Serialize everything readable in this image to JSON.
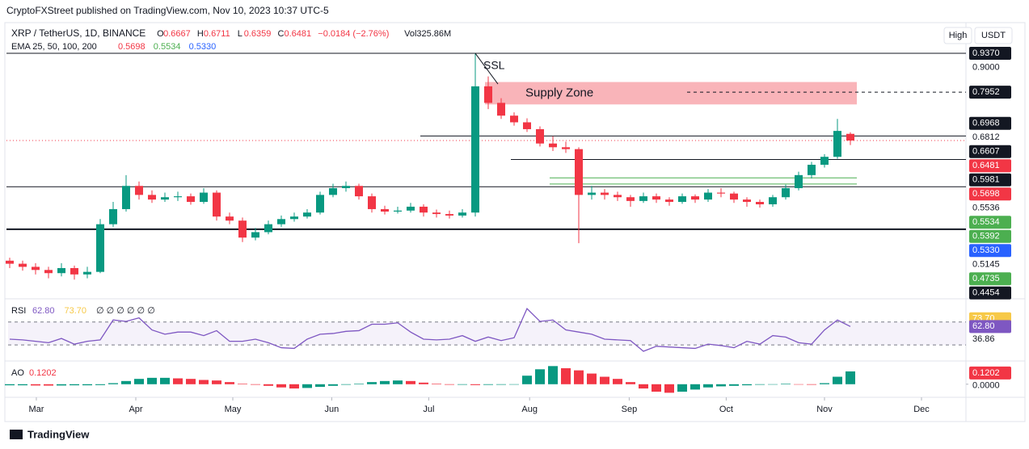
{
  "page": {
    "byline": "CryptoFXStreet published on TradingView.com, Nov 10, 2023 10:37 UTC-5",
    "buttons": [
      "High",
      "USDT"
    ],
    "footer": "TradingView"
  },
  "chart_data": {
    "type": "candlestick",
    "title": "XRP / TetherUS, 1D, BINANCE",
    "ohlc_legend": [
      {
        "key": "O",
        "value": "0.6667"
      },
      {
        "key": "H",
        "value": "0.6711"
      },
      {
        "key": "L",
        "value": "0.6359"
      },
      {
        "key": "C",
        "value": "0.6481"
      }
    ],
    "change": "−0.0184 (−2.76%)",
    "volume": "Vol325.86M",
    "ema_legend": {
      "name": "EMA 25, 50, 100, 200",
      "values": [
        {
          "label": "0.5698",
          "color": "#f23645"
        },
        {
          "label": "0.5534",
          "color": "#4caf50"
        },
        {
          "label": "0.5330",
          "color": "#2962ff"
        }
      ]
    },
    "log_scale": true,
    "ylim": [
      0.34,
      0.95
    ],
    "ohlc": [
      [
        0.39,
        0.395,
        0.378,
        0.385
      ],
      [
        0.385,
        0.39,
        0.374,
        0.38
      ],
      [
        0.38,
        0.386,
        0.368,
        0.375
      ],
      [
        0.375,
        0.38,
        0.362,
        0.37
      ],
      [
        0.37,
        0.386,
        0.365,
        0.378
      ],
      [
        0.378,
        0.382,
        0.36,
        0.368
      ],
      [
        0.368,
        0.38,
        0.362,
        0.372
      ],
      [
        0.372,
        0.465,
        0.37,
        0.455
      ],
      [
        0.455,
        0.5,
        0.45,
        0.485
      ],
      [
        0.485,
        0.56,
        0.48,
        0.535
      ],
      [
        0.535,
        0.545,
        0.505,
        0.515
      ],
      [
        0.515,
        0.525,
        0.498,
        0.505
      ],
      [
        0.505,
        0.52,
        0.5,
        0.51
      ],
      [
        0.51,
        0.522,
        0.502,
        0.512
      ],
      [
        0.512,
        0.518,
        0.494,
        0.5
      ],
      [
        0.5,
        0.53,
        0.496,
        0.52
      ],
      [
        0.52,
        0.525,
        0.462,
        0.47
      ],
      [
        0.47,
        0.478,
        0.455,
        0.462
      ],
      [
        0.462,
        0.468,
        0.422,
        0.43
      ],
      [
        0.43,
        0.448,
        0.425,
        0.44
      ],
      [
        0.44,
        0.462,
        0.436,
        0.455
      ],
      [
        0.455,
        0.472,
        0.45,
        0.465
      ],
      [
        0.465,
        0.478,
        0.46,
        0.47
      ],
      [
        0.47,
        0.485,
        0.466,
        0.478
      ],
      [
        0.478,
        0.522,
        0.474,
        0.515
      ],
      [
        0.515,
        0.54,
        0.51,
        0.53
      ],
      [
        0.53,
        0.545,
        0.522,
        0.535
      ],
      [
        0.535,
        0.54,
        0.505,
        0.512
      ],
      [
        0.512,
        0.518,
        0.478,
        0.485
      ],
      [
        0.485,
        0.492,
        0.474,
        0.48
      ],
      [
        0.48,
        0.49,
        0.476,
        0.482
      ],
      [
        0.482,
        0.498,
        0.478,
        0.49
      ],
      [
        0.49,
        0.495,
        0.47,
        0.478
      ],
      [
        0.478,
        0.484,
        0.468,
        0.475
      ],
      [
        0.475,
        0.482,
        0.466,
        0.472
      ],
      [
        0.472,
        0.485,
        0.468,
        0.478
      ],
      [
        0.478,
        0.937,
        0.47,
        0.815
      ],
      [
        0.815,
        0.85,
        0.74,
        0.76
      ],
      [
        0.76,
        0.775,
        0.71,
        0.72
      ],
      [
        0.72,
        0.73,
        0.69,
        0.7
      ],
      [
        0.7,
        0.712,
        0.672,
        0.68
      ],
      [
        0.68,
        0.688,
        0.632,
        0.64
      ],
      [
        0.64,
        0.66,
        0.62,
        0.63
      ],
      [
        0.63,
        0.645,
        0.615,
        0.625
      ],
      [
        0.625,
        0.63,
        0.42,
        0.515
      ],
      [
        0.515,
        0.535,
        0.505,
        0.52
      ],
      [
        0.52,
        0.528,
        0.505,
        0.515
      ],
      [
        0.515,
        0.522,
        0.502,
        0.51
      ],
      [
        0.51,
        0.515,
        0.49,
        0.502
      ],
      [
        0.502,
        0.52,
        0.498,
        0.512
      ],
      [
        0.512,
        0.518,
        0.498,
        0.505
      ],
      [
        0.505,
        0.51,
        0.492,
        0.5
      ],
      [
        0.5,
        0.518,
        0.496,
        0.512
      ],
      [
        0.512,
        0.516,
        0.498,
        0.505
      ],
      [
        0.505,
        0.528,
        0.5,
        0.52
      ],
      [
        0.52,
        0.53,
        0.51,
        0.518
      ],
      [
        0.518,
        0.522,
        0.498,
        0.505
      ],
      [
        0.505,
        0.51,
        0.49,
        0.5
      ],
      [
        0.5,
        0.505,
        0.488,
        0.495
      ],
      [
        0.495,
        0.515,
        0.49,
        0.51
      ],
      [
        0.51,
        0.538,
        0.505,
        0.53
      ],
      [
        0.53,
        0.568,
        0.525,
        0.56
      ],
      [
        0.56,
        0.592,
        0.552,
        0.585
      ],
      [
        0.585,
        0.612,
        0.578,
        0.605
      ],
      [
        0.605,
        0.71,
        0.6,
        0.675
      ],
      [
        0.6667,
        0.6711,
        0.6359,
        0.6481
      ]
    ],
    "up_color": "#089981",
    "down_color": "#f23645",
    "price_labels": [
      {
        "value": 0.937,
        "label": "0.9370",
        "color": "#131722"
      },
      {
        "value": 0.9,
        "label": "0.9000"
      },
      {
        "value": 0.7952,
        "label": "0.7952",
        "color": "#131722"
      },
      {
        "value": 0.6968,
        "label": "0.6968",
        "color": "#131722"
      },
      {
        "value": 0.6812,
        "label": "0.6812"
      },
      {
        "value": 0.6607,
        "label": "0.6607",
        "color": "#131722"
      },
      {
        "value": 0.6481,
        "label": "0.6481",
        "color": "#f23645"
      },
      {
        "value": 0.5981,
        "label": "0.5981",
        "color": "#131722"
      },
      {
        "value": 0.5698,
        "label": "0.5698",
        "color": "#f23645"
      },
      {
        "value": 0.5536,
        "label": "0.5536"
      },
      {
        "value": 0.5534,
        "label": "0.5534",
        "color": "#4caf50"
      },
      {
        "value": 0.5392,
        "label": "0.5392",
        "color": "#4caf50"
      },
      {
        "value": 0.533,
        "label": "0.5330",
        "color": "#2962ff"
      },
      {
        "value": 0.5145,
        "label": "0.5145"
      },
      {
        "value": 0.4735,
        "label": "0.4735",
        "color": "#4caf50"
      },
      {
        "value": 0.4454,
        "label": "0.4454",
        "color": "#131722"
      }
    ],
    "levels": [
      {
        "value": 0.937,
        "color": "#131722"
      },
      {
        "value": 0.6607,
        "color": "#131722"
      },
      {
        "value": 0.6481,
        "color": "#f23645",
        "dash": true
      },
      {
        "value": 0.5981,
        "color": "#131722"
      },
      {
        "value": 0.5536,
        "color": "#4caf50"
      },
      {
        "value": 0.5392,
        "color": "#4caf50"
      },
      {
        "value": 0.533,
        "color": "#131722"
      },
      {
        "value": 0.4454,
        "color": "#131722"
      }
    ],
    "zone": {
      "label": "Supply Zone",
      "low": 0.755,
      "high": 0.83,
      "level": 0.7952
    },
    "annotation": "SSL",
    "x_ticks": [
      {
        "value": 2.06,
        "label": "Mar"
      },
      {
        "value": 9.75,
        "label": "Apr"
      },
      {
        "value": 17.25,
        "label": "May"
      },
      {
        "value": 24.9,
        "label": "Jun"
      },
      {
        "value": 32.4,
        "label": "Jul"
      },
      {
        "value": 40.2,
        "label": "Aug"
      },
      {
        "value": 47.9,
        "label": "Sep"
      },
      {
        "value": 55.4,
        "label": "Oct"
      },
      {
        "value": 63,
        "label": "Nov"
      },
      {
        "value": 70.5,
        "label": "Dec"
      }
    ],
    "rsi": {
      "name": "RSI",
      "legend": [
        "62.80",
        "73.70",
        "∅ ∅ ∅ ∅ ∅ ∅"
      ],
      "color": "#7e57c2",
      "ylim": [
        20,
        95
      ],
      "yticks": [
        {
          "value": 69.16,
          "label": "69.16"
        },
        {
          "value": 36.86,
          "label": "36.86"
        }
      ],
      "badges": [
        {
          "value": 73.7,
          "label": "73.70",
          "color": "#f7c948"
        },
        {
          "value": 62.8,
          "label": "62.80",
          "color": "#7e57c2"
        }
      ],
      "values": [
        45,
        44,
        42,
        40,
        46,
        38,
        42,
        44,
        72,
        70,
        75,
        58,
        52,
        55,
        55,
        50,
        57,
        42,
        42,
        45,
        40,
        33,
        32,
        45,
        52,
        53,
        56,
        57,
        66,
        66,
        68,
        55,
        45,
        44,
        45,
        50,
        42,
        48,
        43,
        47,
        88,
        70,
        72,
        58,
        55,
        52,
        45,
        44,
        43,
        28,
        35,
        34,
        33,
        32,
        38,
        36,
        33,
        42,
        38,
        50,
        48,
        40,
        38,
        58,
        72,
        62.8
      ]
    },
    "ao": {
      "name": "AO",
      "legend": "0.1202",
      "ylim": [
        -0.1,
        0.18
      ],
      "yticks": [
        {
          "value": 0,
          "label": "0.0000"
        }
      ],
      "badge": {
        "value": 0.1202,
        "label": "0.1202",
        "color": "#f23645"
      },
      "values": [
        -0.01,
        -0.01,
        -0.012,
        -0.013,
        -0.012,
        -0.01,
        -0.01,
        -0.008,
        0.01,
        0.03,
        0.05,
        0.06,
        0.06,
        0.055,
        0.05,
        0.04,
        0.035,
        0.02,
        0.005,
        -0.005,
        -0.015,
        -0.03,
        -0.04,
        -0.035,
        -0.025,
        -0.015,
        -0.005,
        0.005,
        0.02,
        0.03,
        0.035,
        0.03,
        0.015,
        0.005,
        -0.005,
        -0.005,
        -0.008,
        -0.006,
        -0.005,
        -0.004,
        0.08,
        0.14,
        0.17,
        0.15,
        0.13,
        0.1,
        0.07,
        0.05,
        0.02,
        -0.04,
        -0.07,
        -0.08,
        -0.07,
        -0.05,
        -0.03,
        -0.02,
        -0.015,
        -0.01,
        -0.005,
        0,
        0.005,
        0,
        -0.005,
        0.01,
        0.07,
        0.1202
      ]
    }
  }
}
